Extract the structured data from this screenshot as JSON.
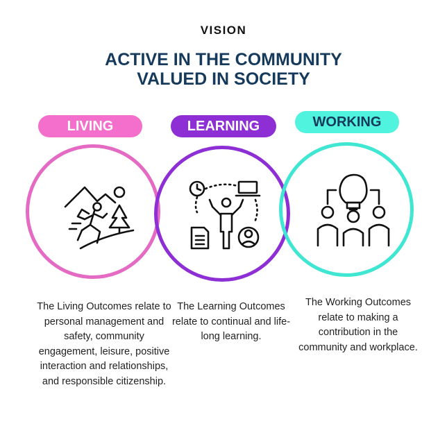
{
  "header": {
    "eyebrow": "VISION",
    "headline_line1": "ACTIVE IN THE COMMUNITY",
    "headline_line2": "VALUED IN SOCIETY"
  },
  "colors": {
    "living": "#e46ac3",
    "learning": "#8e2fd6",
    "working": "#3fe6d2",
    "headline": "#163a5b"
  },
  "pillars": {
    "living": {
      "label": "LIVING",
      "icon": "hiking-person-icon",
      "description": "The Living Outcomes relate to personal management and safety, community engagement, leisure, positive interaction and relationships, and responsible citizenship."
    },
    "learning": {
      "label": "LEARNING",
      "icon": "learning-person-icon",
      "description": "The Learning Outcomes relate to continual and life-long learning."
    },
    "working": {
      "label": "WORKING",
      "icon": "lightbulb-team-icon",
      "description": "The Working Outcomes relate to making a contribution in the community and workplace."
    }
  }
}
